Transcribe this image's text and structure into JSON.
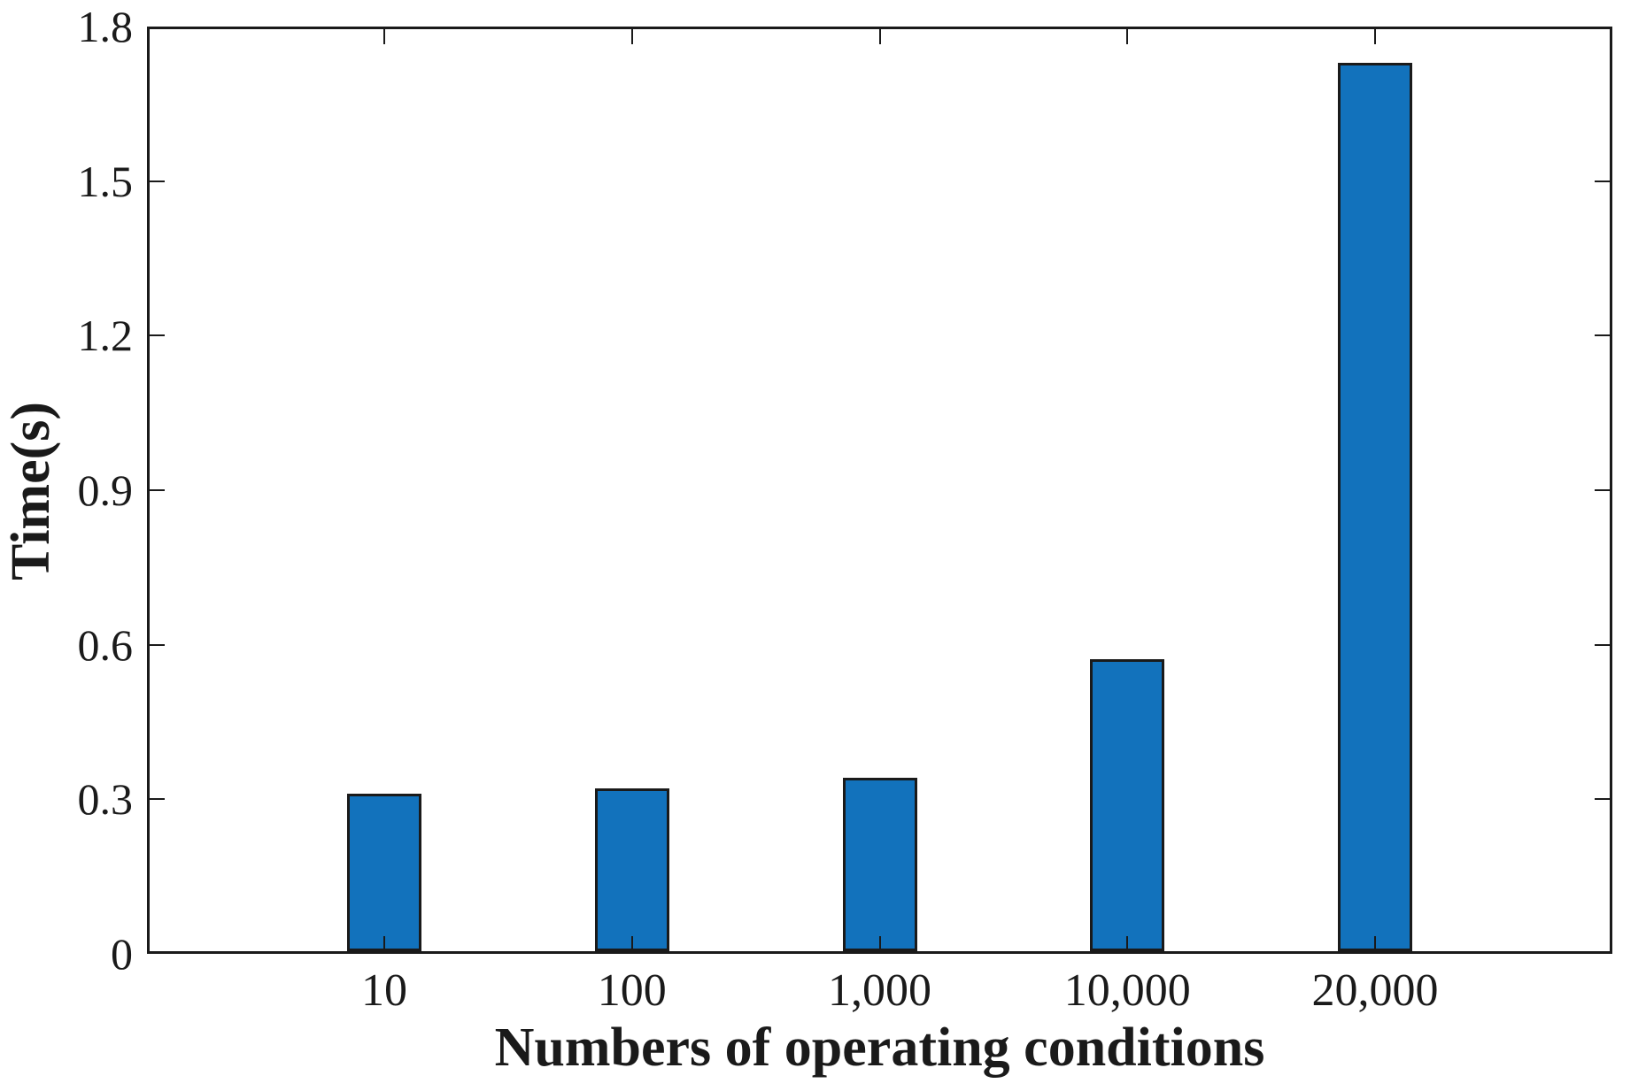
{
  "chart_data": {
    "type": "bar",
    "categories": [
      "10",
      "100",
      "1,000",
      "10,000",
      "20,000"
    ],
    "values": [
      0.305,
      0.316,
      0.336,
      0.567,
      1.724
    ],
    "title": "",
    "xlabel": "Numbers of operating conditions",
    "ylabel": "Time(s)",
    "ylim": [
      0,
      1.8
    ],
    "yticks": [
      0,
      0.3,
      0.6,
      0.9,
      1.2,
      1.5,
      1.8
    ],
    "ytick_labels": [
      "0",
      "0.3",
      "0.6",
      "0.9",
      "1.2",
      "1.5",
      "1.8"
    ],
    "grid": false,
    "legend_position": "none",
    "box": true,
    "tick_direction": "in",
    "bar_color": "#1272BC",
    "bar_edge_color": "#1a1a1a",
    "axis_color": "#1a1a1a"
  }
}
